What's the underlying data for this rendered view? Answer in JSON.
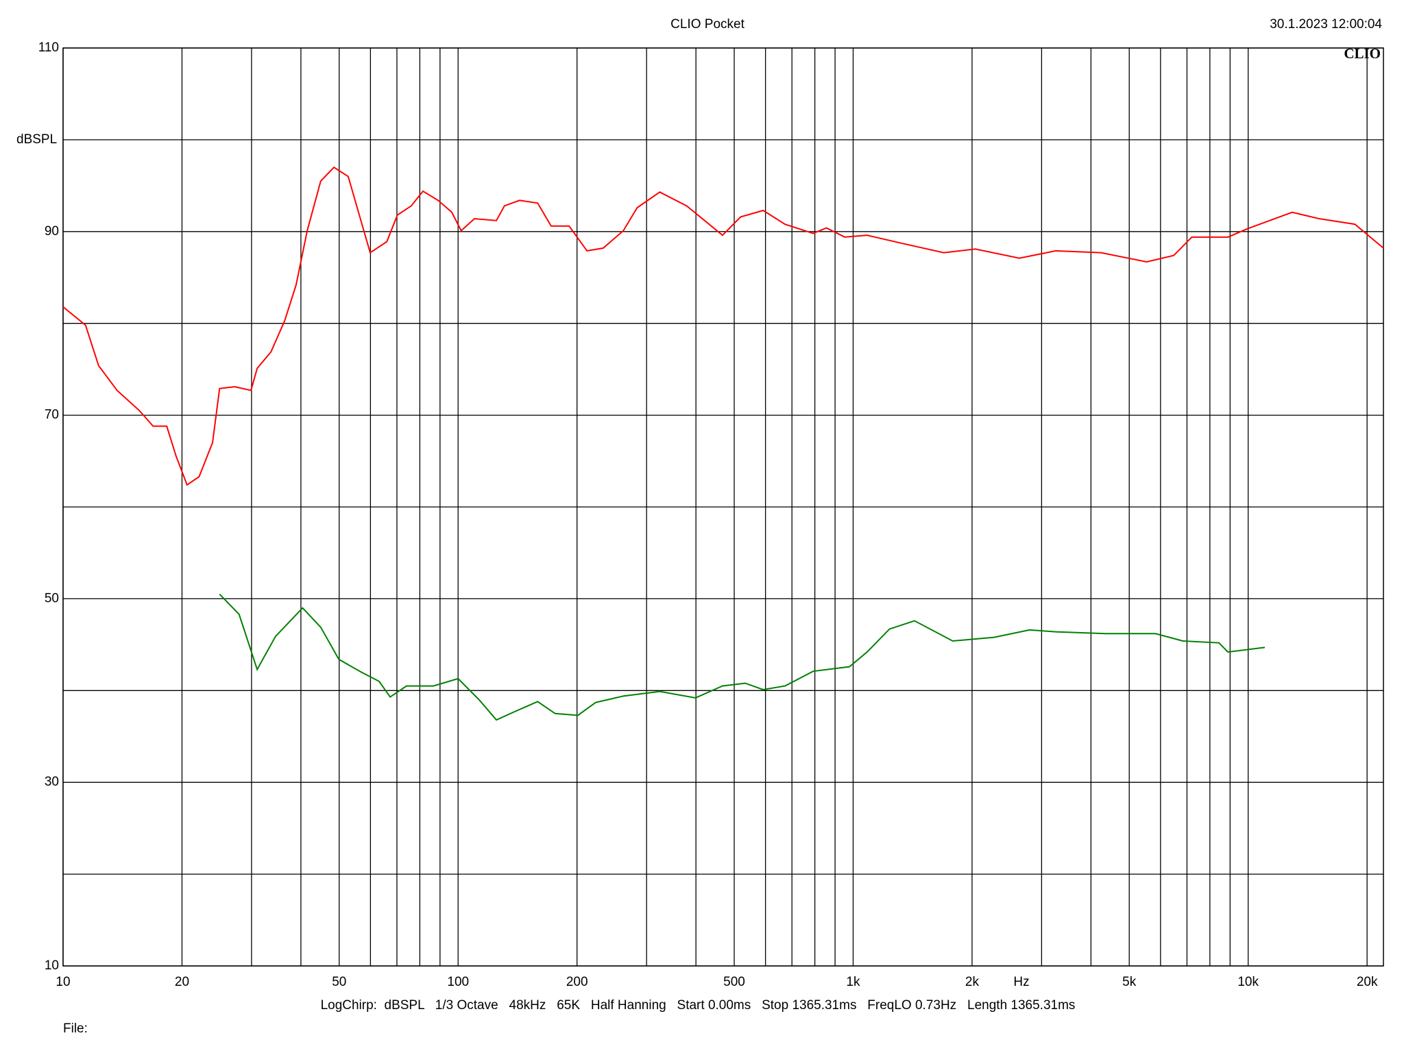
{
  "chart_data": {
    "type": "line",
    "title": "CLIO Pocket",
    "timestamp": "30.1.2023 12:00:04",
    "logo": "CLIO",
    "y_label": "dBSPL",
    "x_label": "Hz",
    "settings_line": "LogChirp:  dBSPL   1/3 Octave   48kHz   65K   Half Hanning   Start 0.00ms   Stop 1365.31ms   FreqLO 0.73Hz   Length 1365.31ms",
    "file_label": "File:",
    "xscale": "log",
    "grid": true,
    "xlim": [
      10,
      22000
    ],
    "ylim": [
      10,
      110
    ],
    "xticks": [
      10,
      20,
      50,
      100,
      200,
      500,
      {
        "value": 1000,
        "label": "1k"
      },
      {
        "value": 2000,
        "label": "2k"
      },
      {
        "value": 5000,
        "label": "5k"
      },
      {
        "value": 10000,
        "label": "10k"
      },
      {
        "value": 20000,
        "label": "20k"
      }
    ],
    "x_minor_grid": [
      30,
      40,
      60,
      70,
      80,
      90,
      300,
      400,
      600,
      700,
      800,
      900,
      3000,
      4000,
      6000,
      7000,
      8000,
      9000
    ],
    "yticks": [
      10,
      30,
      50,
      70,
      90,
      110
    ],
    "y_minor_grid": [
      20,
      40,
      60,
      80,
      100
    ],
    "series": [
      {
        "color": "#ff0000",
        "x": [
          10,
          11.4,
          12.3,
          13.7,
          15.6,
          16.9,
          18.3,
          19.3,
          20.6,
          22.1,
          23.9,
          24.9,
          27.2,
          29.9,
          31.0,
          33.6,
          36.4,
          38.9,
          41.5,
          44.9,
          48.5,
          52.7,
          56.4,
          59.9,
          66.0,
          70.2,
          76.1,
          81.5,
          89.0,
          96.4,
          101.8,
          110,
          125,
          131,
          143,
          159,
          172,
          191,
          212,
          233,
          262,
          284,
          324,
          379,
          467,
          519,
          592,
          672,
          792,
          856,
          952,
          1085,
          1335,
          1696,
          2039,
          2635,
          3256,
          4246,
          5532,
          6482,
          7201,
          8893,
          9941,
          12920,
          15140,
          18630,
          22000
        ],
        "values": [
          81.8,
          79.8,
          75.4,
          72.7,
          70.5,
          68.8,
          68.8,
          65.6,
          62.4,
          63.3,
          67.0,
          72.9,
          73.1,
          72.7,
          75.1,
          76.9,
          80.3,
          84.2,
          90.1,
          95.5,
          97.0,
          96.0,
          91.6,
          87.7,
          88.9,
          91.8,
          92.8,
          94.4,
          93.4,
          92.1,
          90.1,
          91.4,
          91.2,
          92.8,
          93.4,
          93.1,
          90.6,
          90.6,
          87.9,
          88.2,
          90.1,
          92.6,
          94.3,
          92.8,
          89.6,
          91.6,
          92.3,
          90.8,
          89.8,
          90.4,
          89.4,
          89.6,
          88.7,
          87.7,
          88.1,
          87.1,
          87.9,
          87.7,
          86.7,
          87.4,
          89.4,
          89.4,
          90.3,
          92.1,
          91.4,
          90.8,
          88.2
        ]
      },
      {
        "color": "#008000",
        "x": [
          24.9,
          27.9,
          31.0,
          34.5,
          40.4,
          44.9,
          49.9,
          56.9,
          63.1,
          67.3,
          74.0,
          86.6,
          100,
          113,
          125,
          139,
          159,
          176,
          201,
          223,
          262,
          324,
          399,
          467,
          533,
          592,
          672,
          792,
          979,
          1085,
          1236,
          1430,
          1787,
          2276,
          2795,
          3256,
          4357,
          4981,
          5828,
          6835,
          8437,
          8885,
          11020
        ],
        "values": [
          50.5,
          48.3,
          42.3,
          45.9,
          49.0,
          46.9,
          43.4,
          42.0,
          41.0,
          39.3,
          40.5,
          40.5,
          41.3,
          39.0,
          36.8,
          37.7,
          38.8,
          37.5,
          37.3,
          38.7,
          39.4,
          39.9,
          39.2,
          40.5,
          40.8,
          40.1,
          40.5,
          42.1,
          42.6,
          44.2,
          46.7,
          47.6,
          45.4,
          45.8,
          46.6,
          46.4,
          46.2,
          46.2,
          46.2,
          45.4,
          45.2,
          44.2,
          44.7
        ]
      }
    ]
  }
}
